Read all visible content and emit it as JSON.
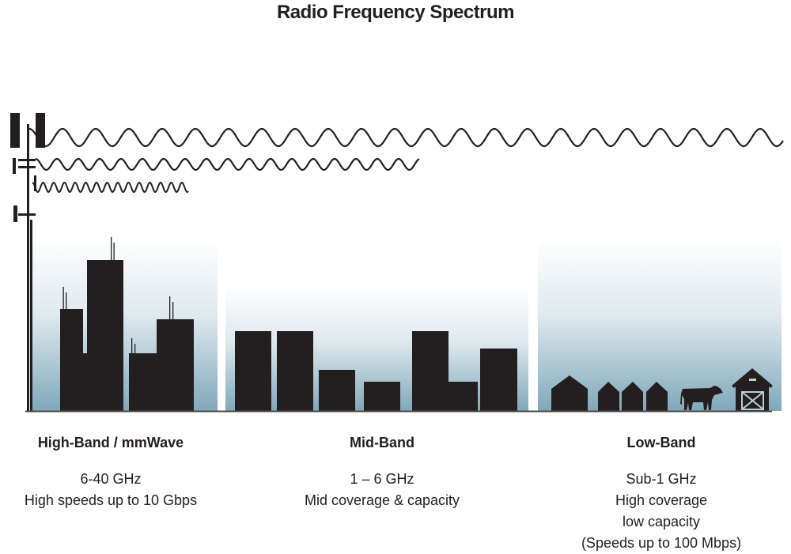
{
  "title": "Radio Frequency Spectrum",
  "bands": [
    {
      "name": "High-Band / mmWave",
      "lines": [
        "6-40 GHz",
        "High speeds up to 10 Gbps"
      ]
    },
    {
      "name": "Mid-Band",
      "lines": [
        "1 – 6 GHz",
        "Mid coverage & capacity"
      ]
    },
    {
      "name": "Low-Band",
      "lines": [
        "Sub-1 GHz",
        "High coverage",
        "low capacity",
        "(Speeds up to 100 Mbps)"
      ]
    }
  ],
  "colors": {
    "silhouette": "#231f20",
    "sky_bottom": "#7fa8ba",
    "sky_top": "#ffffff"
  }
}
